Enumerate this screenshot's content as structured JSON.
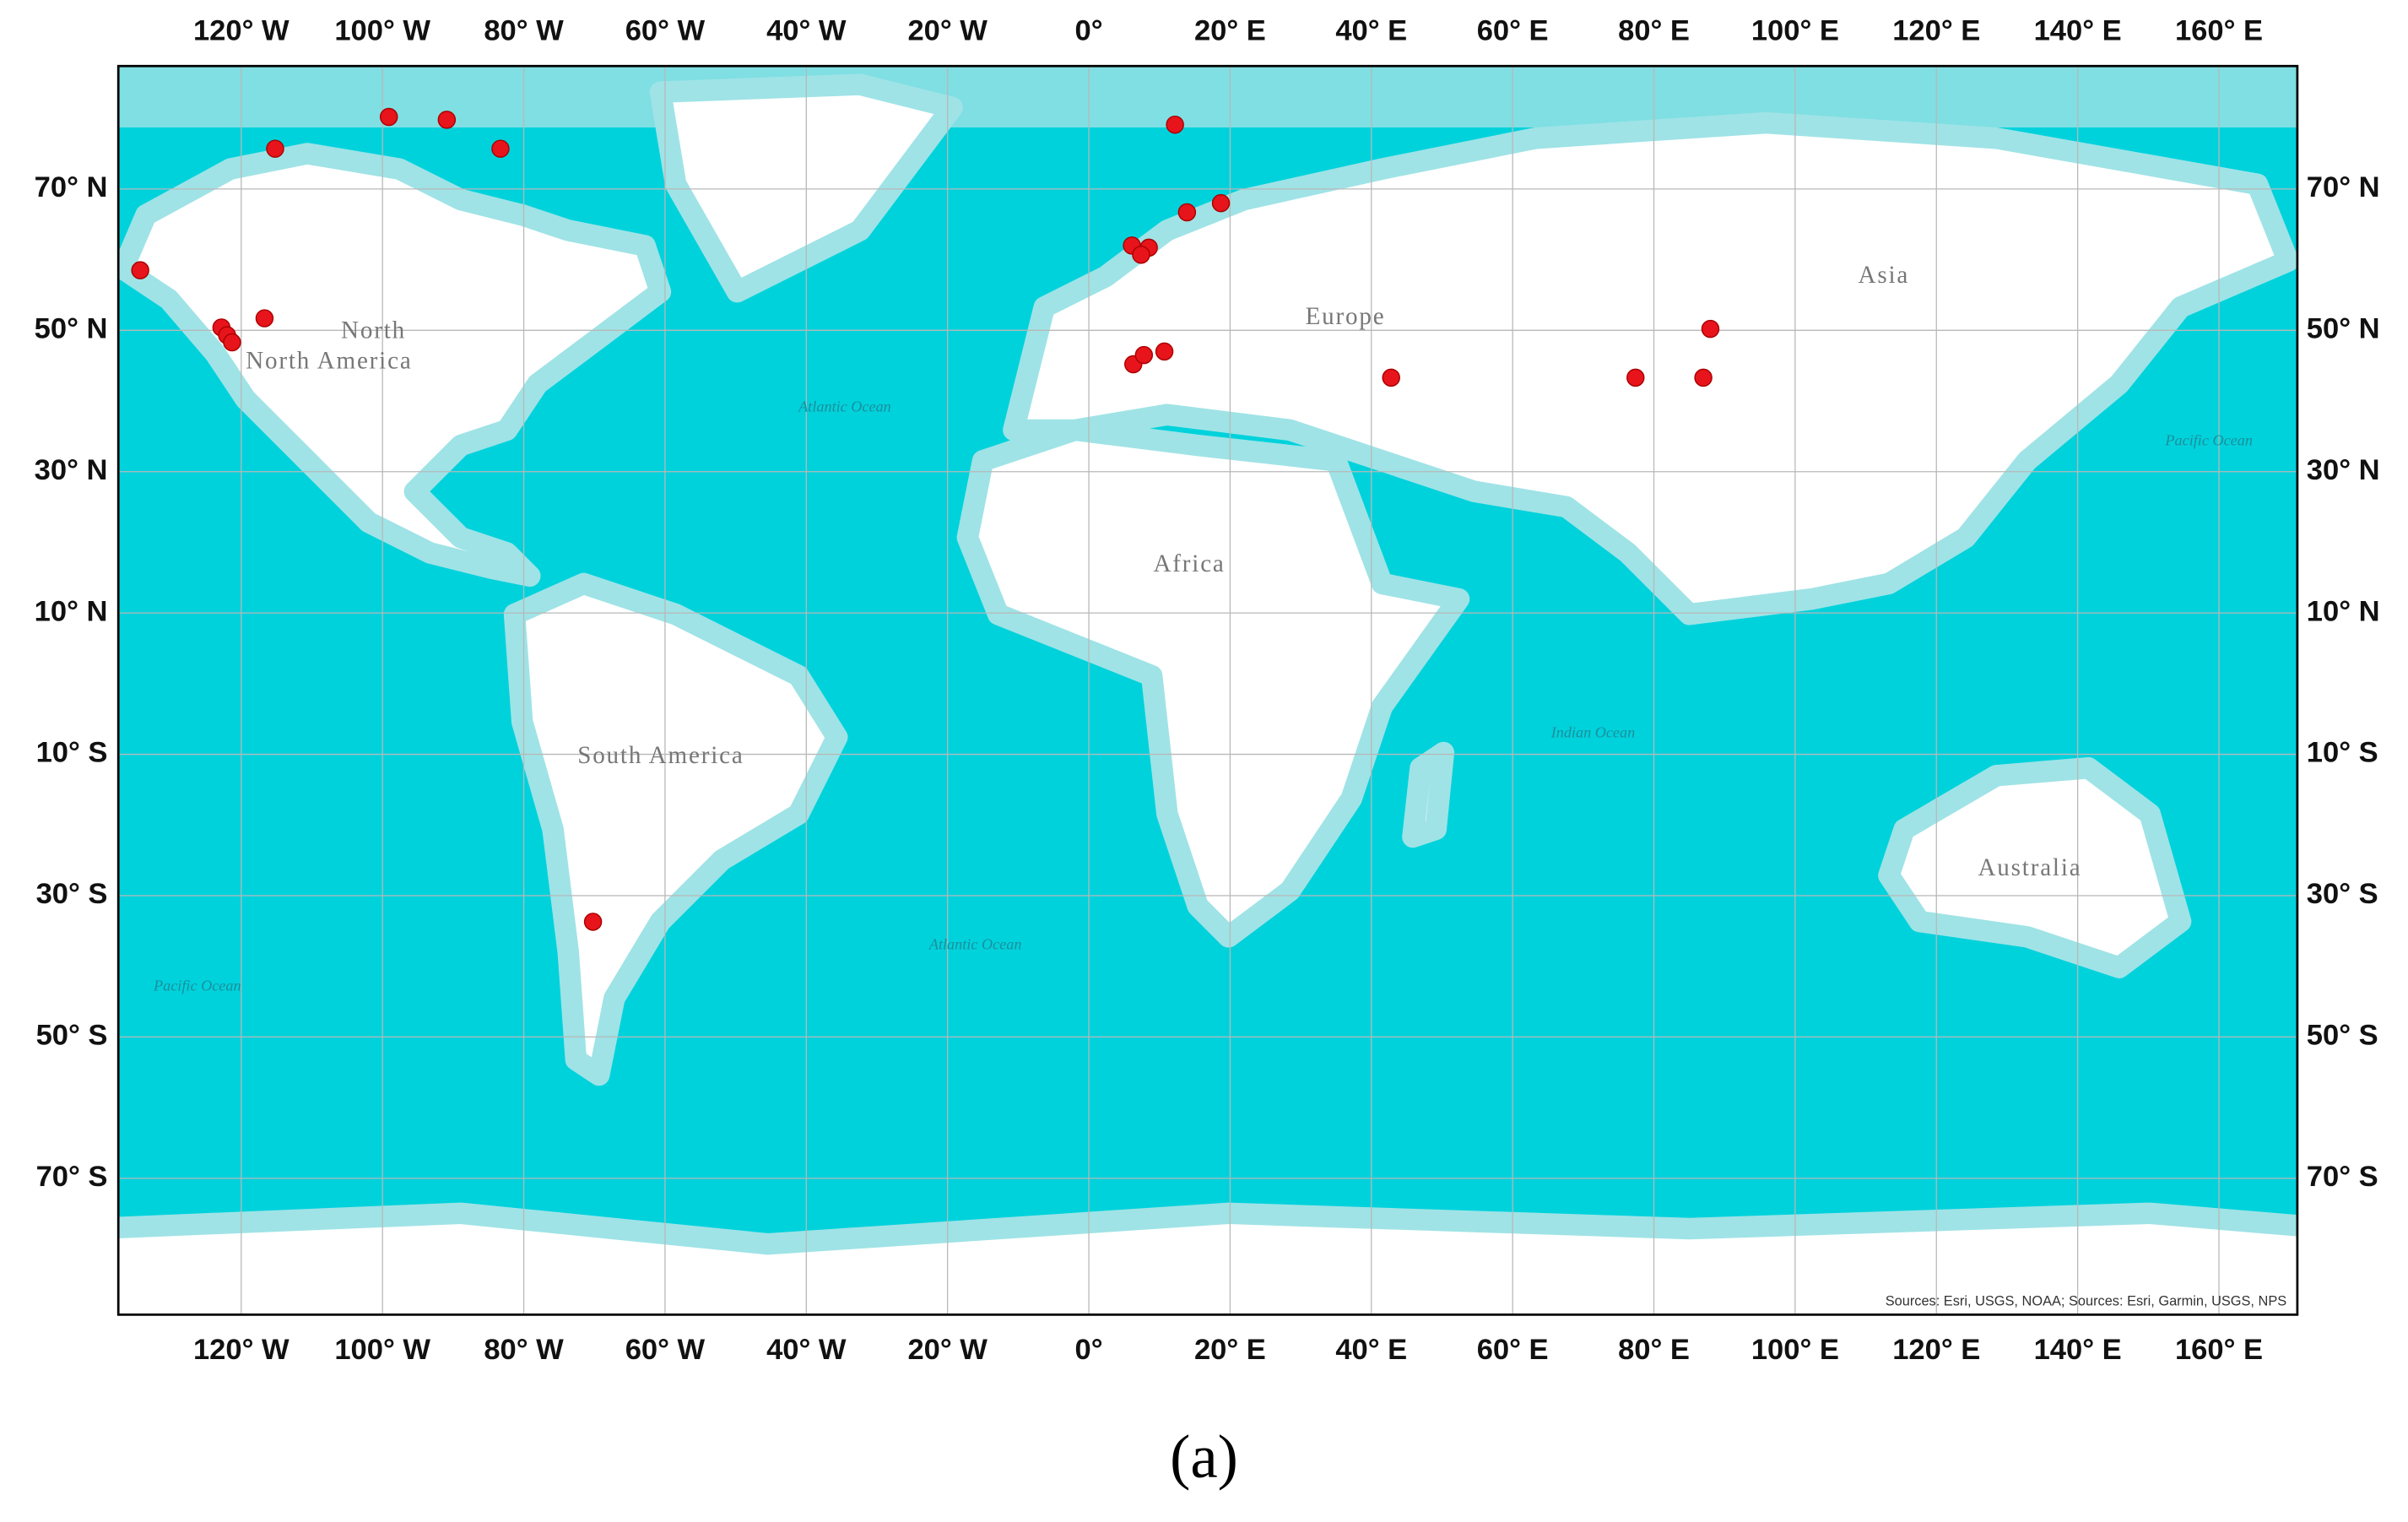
{
  "chart_data": {
    "type": "map",
    "x": [
      -134.3,
      -122.8,
      -122,
      -121.3,
      -116.7,
      -115.2,
      -99.1,
      -90.9,
      -83.3,
      12.2,
      18.7,
      13.9,
      6.1,
      8.5,
      7.4,
      6.3,
      7.8,
      10.7,
      42.8,
      77.4,
      87,
      88,
      -70.2
    ],
    "y": [
      58.5,
      50.4,
      49.3,
      48.3,
      51.7,
      75.7,
      80.2,
      79.8,
      75.7,
      79.1,
      68,
      66.7,
      62,
      61.7,
      60.7,
      45.2,
      46.5,
      47,
      43.3,
      43.3,
      43.3,
      50.2,
      -33.7
    ],
    "color": "#e8141b",
    "xlim": [
      -137.4,
      171.1
    ],
    "ylim": [
      -89.3,
      87.4
    ],
    "xticks": [
      {
        "value": -120,
        "label": "120° W"
      },
      {
        "value": -100,
        "label": "100° W"
      },
      {
        "value": -80,
        "label": "80° W"
      },
      {
        "value": -60,
        "label": "60° W"
      },
      {
        "value": -40,
        "label": "40° W"
      },
      {
        "value": -20,
        "label": "20° W"
      },
      {
        "value": 0,
        "label": "0°"
      },
      {
        "value": 20,
        "label": "20° E"
      },
      {
        "value": 40,
        "label": "40° E"
      },
      {
        "value": 60,
        "label": "60° E"
      },
      {
        "value": 80,
        "label": "80° E"
      },
      {
        "value": 100,
        "label": "100° E"
      },
      {
        "value": 120,
        "label": "120° E"
      },
      {
        "value": 140,
        "label": "140° E"
      },
      {
        "value": 160,
        "label": "160° E"
      }
    ],
    "yticks": [
      {
        "value": 70,
        "label": "70° N"
      },
      {
        "value": 50,
        "label": "50° N"
      },
      {
        "value": 30,
        "label": "30° N"
      },
      {
        "value": 10,
        "label": "10° N"
      },
      {
        "value": -10,
        "label": "10° S"
      },
      {
        "value": -30,
        "label": "30° S"
      },
      {
        "value": -50,
        "label": "50° S"
      },
      {
        "value": -70,
        "label": "70° S"
      }
    ],
    "grid": true,
    "annotations": [
      "North",
      "North America",
      "Europe",
      "Asia",
      "Africa",
      "South America",
      "Australia",
      "Atlantic Ocean",
      "Pacific Ocean",
      "Indian Ocean",
      "Atlantic Ocean",
      "Pacific Ocean"
    ],
    "source": "Sources: Esri, USGS, NOAA; Sources: Esri, Garmin, USGS, NPS",
    "caption": "(a)"
  }
}
